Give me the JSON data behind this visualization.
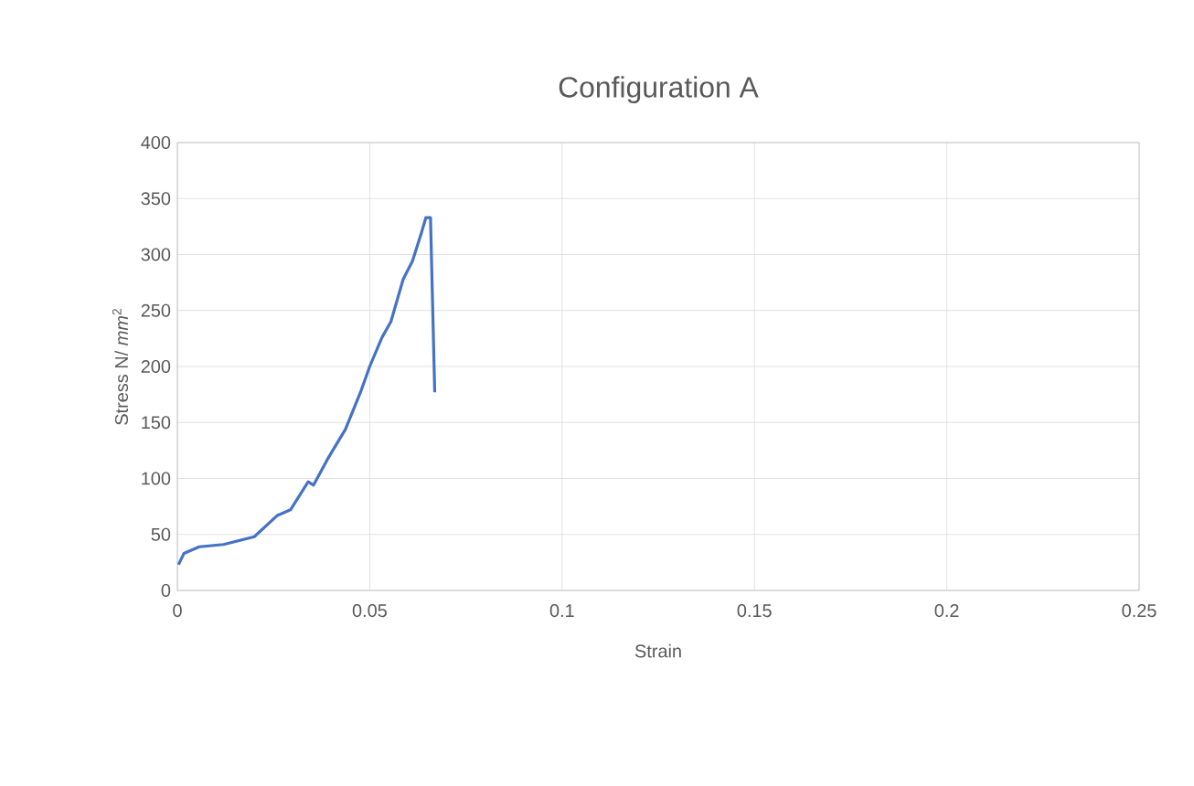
{
  "chart_data": {
    "type": "line",
    "title": "Configuration A",
    "xlabel": "Strain",
    "ylabel": "Stress N/ *mm*$^{2}$",
    "x": [
      0.0003,
      0.0017,
      0.0057,
      0.012,
      0.02,
      0.026,
      0.0294,
      0.034,
      0.0354,
      0.039,
      0.0437,
      0.0476,
      0.05,
      0.0532,
      0.0555,
      0.0587,
      0.0611,
      0.0634,
      0.0646,
      0.0658,
      0.0669
    ],
    "values": [
      23,
      33,
      39,
      41,
      48,
      67,
      72,
      97,
      94,
      117,
      144,
      177,
      200,
      226,
      240,
      278,
      294,
      319,
      333,
      333,
      177
    ],
    "color": "#4472c4",
    "xlim": [
      0,
      0.25
    ],
    "ylim": [
      0,
      400
    ],
    "xticks": [
      0,
      0.05,
      0.1,
      0.15,
      0.2,
      0.25
    ],
    "yticks": [
      0,
      50,
      100,
      150,
      200,
      250,
      300,
      350,
      400
    ],
    "grid": true,
    "marker": "none",
    "line_style": "solid"
  }
}
